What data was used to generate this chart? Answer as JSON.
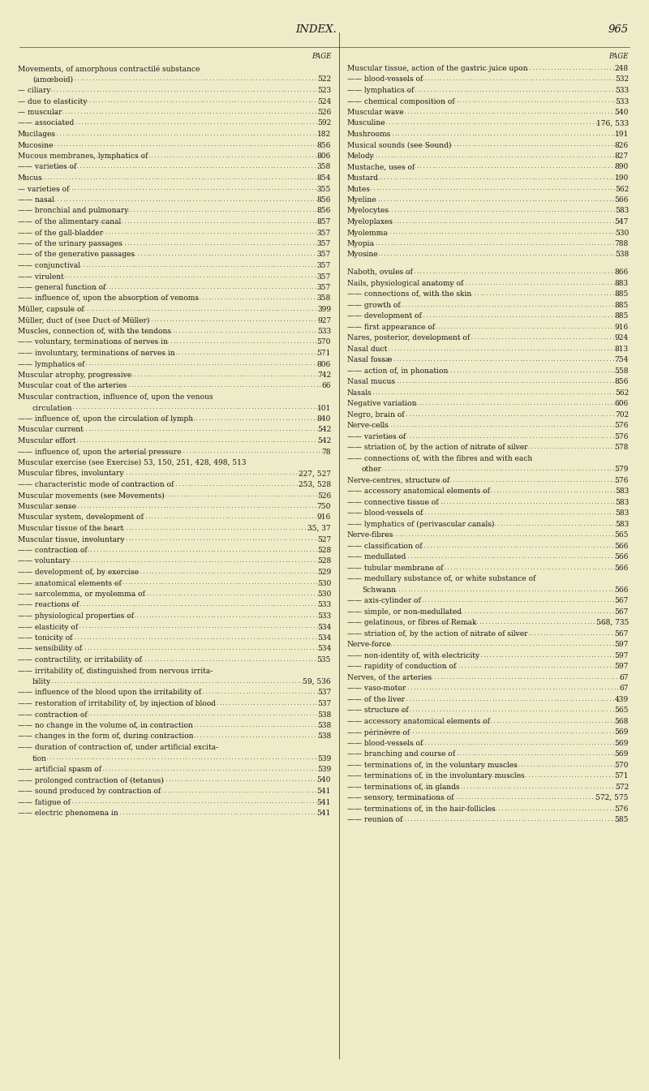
{
  "bg_color": "#edebc8",
  "text_color": "#1a1a1a",
  "title": "INDEX.",
  "page_num": "965",
  "font_size": 6.5,
  "title_font_size": 9.5,
  "left_col": [
    [
      "Movements, of amorphous contractilé substance",
      "",
      false
    ],
    [
      "    (amœboid)",
      "522",
      false
    ],
    [
      "— ciliary",
      "523",
      false
    ],
    [
      "— due to elasticity",
      "524",
      false
    ],
    [
      "— muscular",
      "526",
      false
    ],
    [
      "—— associated",
      "592",
      false
    ],
    [
      "Mucilages",
      "182",
      false
    ],
    [
      "Mucosine",
      "856",
      false
    ],
    [
      "Mucous membranes, lymphatics of",
      "806",
      false
    ],
    [
      "—— varieties of",
      "358",
      false
    ],
    [
      "Mucus",
      "854",
      false
    ],
    [
      "— varieties of",
      "355",
      false
    ],
    [
      "—— nasal",
      "856",
      false
    ],
    [
      "—— bronchial and pulmonary",
      "856",
      false
    ],
    [
      "—— of the alimentary canal",
      "857",
      false
    ],
    [
      "—— of the gall-bladder",
      "357",
      false
    ],
    [
      "—— of the urinary passages",
      "357",
      false
    ],
    [
      "—— of the generative passages",
      "357",
      false
    ],
    [
      "—— conjunctival",
      "357",
      false
    ],
    [
      "—— virulent",
      "357",
      false
    ],
    [
      "—— general function of",
      "357",
      false
    ],
    [
      "—— influence of, upon the absorption of venoms",
      "358",
      false
    ],
    [
      "Müller, capsule of",
      "399",
      false
    ],
    [
      "Müller, duct of (see Duct of Müller)",
      "927",
      false
    ],
    [
      "Muscles, connection of, with the tendons",
      "533",
      false
    ],
    [
      "—— voluntary, terminations of nerves in",
      "570",
      false
    ],
    [
      "—— involuntary, terminations of nerves in",
      "571",
      false
    ],
    [
      "—— lymphatics of",
      "806",
      false
    ],
    [
      "Muscular atrophy, progressive",
      "742",
      false
    ],
    [
      "Muscular coat of the arteries",
      "66",
      false
    ],
    [
      "Muscular contraction, influence of, upon the venous",
      "",
      false
    ],
    [
      "    circulation",
      "101",
      false
    ],
    [
      "—— influence of, upon the circulation of lymph",
      "840",
      false
    ],
    [
      "Muscular current",
      "542",
      false
    ],
    [
      "Muscular effort",
      "542",
      false
    ],
    [
      "—— influence of, upon the arterial pressure",
      "78",
      false
    ],
    [
      "Muscular exercise (see Exercise) 53, 150, 251, 428, 498, 513",
      "",
      true
    ],
    [
      "Muscular fibres, involuntary",
      "227, 527",
      false
    ],
    [
      "—— characteristic mode of contraction of",
      "253, 528",
      false
    ],
    [
      "Muscular movements (see Movements)",
      "526",
      false
    ],
    [
      "Muscular sense",
      "750",
      false
    ],
    [
      "Muscular system, development of",
      "916",
      false
    ],
    [
      "Muscular tissue of the heart",
      "35, 37",
      false
    ],
    [
      "Muscular tissue, involuntary",
      "527",
      false
    ],
    [
      "—— contraction of",
      "528",
      false
    ],
    [
      "—— voluntary",
      "528",
      false
    ],
    [
      "—— development of, by exercise",
      "529",
      false
    ],
    [
      "—— anatomical elements of",
      "530",
      false
    ],
    [
      "—— sarcolemma, or myolemma of",
      "530",
      false
    ],
    [
      "—— reactions of",
      "533",
      false
    ],
    [
      "—— physiological properties of",
      "533",
      false
    ],
    [
      "—— elasticity of",
      "534",
      false
    ],
    [
      "—— tonicity of",
      "534",
      false
    ],
    [
      "—— sensibility of",
      "534",
      false
    ],
    [
      "—— contractility, or irritability of",
      "535",
      false
    ],
    [
      "—— irritability of, distinguished from nervous irrita-",
      "",
      false
    ],
    [
      "    bility",
      "59, 536",
      false
    ],
    [
      "—— influence of the blood upon the irritability of",
      "537",
      false
    ],
    [
      "—— restoration of irritability of, by injection of blood",
      "537",
      false
    ],
    [
      "—— contraction of",
      "538",
      false
    ],
    [
      "—— no change in the volume of, in contraction",
      "538",
      false
    ],
    [
      "—— changes in the form of, during contraction",
      "538",
      false
    ],
    [
      "—— duration of contraction of, under artificial excita-",
      "",
      false
    ],
    [
      "    tion",
      "539",
      false
    ],
    [
      "—— artificial spasm of",
      "539",
      false
    ],
    [
      "—— prolonged contraction of (tetanus)",
      "540",
      false
    ],
    [
      "—— sound produced by contraction of",
      "541",
      false
    ],
    [
      "—— fatigue of",
      "541",
      false
    ],
    [
      "—— electric phenomena in",
      "541",
      false
    ]
  ],
  "right_col": [
    [
      "Muscular tissue, action of the gastric juice upon",
      "248",
      false
    ],
    [
      "—— blood-vessels of",
      "532",
      false
    ],
    [
      "—— lymphatics of",
      "533",
      false
    ],
    [
      "—— chemical composition of",
      "533",
      false
    ],
    [
      "Muscular wave",
      "540",
      false
    ],
    [
      "Musculine",
      "176, 533",
      false
    ],
    [
      "Mushrooms",
      "191",
      false
    ],
    [
      "Musical sounds (see Sound)",
      "826",
      false
    ],
    [
      "Melody",
      "827",
      false
    ],
    [
      "Mustache, uses of",
      "890",
      false
    ],
    [
      "Mustard",
      "190",
      false
    ],
    [
      "Mutes",
      "562",
      false
    ],
    [
      "Myeline",
      "566",
      false
    ],
    [
      "Myelocytes",
      "583",
      false
    ],
    [
      "Myeloplaxes",
      "547",
      false
    ],
    [
      "Myolemma",
      "530",
      false
    ],
    [
      "Myopia",
      "788",
      false
    ],
    [
      "Myosine",
      "538",
      false
    ],
    [
      "",
      "",
      false
    ],
    [
      "Naboth, ovules of",
      "866",
      false
    ],
    [
      "Nails, physiological anatomy of",
      "883",
      false
    ],
    [
      "—— connections of, with the skin",
      "885",
      false
    ],
    [
      "—— growth of",
      "885",
      false
    ],
    [
      "—— development of",
      "885",
      false
    ],
    [
      "—— first appearance of",
      "916",
      false
    ],
    [
      "Nares, posterior, development of",
      "924",
      false
    ],
    [
      "Nasal duct",
      "813",
      false
    ],
    [
      "Nasal fossæ",
      "754",
      false
    ],
    [
      "—— action of, in phonation",
      "558",
      false
    ],
    [
      "Nasal mucus",
      "856",
      false
    ],
    [
      "Nasals",
      "562",
      false
    ],
    [
      "Negative variation",
      "606",
      false
    ],
    [
      "Negro, brain of",
      "702",
      false
    ],
    [
      "Nerve-cells",
      "576",
      false
    ],
    [
      "—— varieties of",
      "576",
      false
    ],
    [
      "—— striation of, by the action of nitrate of silver",
      "578",
      false
    ],
    [
      "—— connections of, with the fibres and with each",
      "",
      false
    ],
    [
      "    other",
      "579",
      false
    ],
    [
      "Nerve-centres, structure of",
      "576",
      false
    ],
    [
      "—— accessory anatomical elements of",
      "583",
      false
    ],
    [
      "—— connective tissue of",
      "583",
      false
    ],
    [
      "—— blood-vessels of",
      "583",
      false
    ],
    [
      "—— lymphatics of (perivascular canals)",
      "583",
      false
    ],
    [
      "Nerve-fibres",
      "565",
      false
    ],
    [
      "—— classification of",
      "566",
      false
    ],
    [
      "—— medullated",
      "566",
      false
    ],
    [
      "—— tubular membrane of",
      "566",
      false
    ],
    [
      "—— medullary substance of, or white substance of",
      "",
      false
    ],
    [
      "    Schwann",
      "566",
      false
    ],
    [
      "—— axis-cylinder of",
      "567",
      false
    ],
    [
      "—— simple, or non-medullated",
      "567",
      false
    ],
    [
      "—— gelatinous, or fibres of Remak",
      "568, 735",
      false
    ],
    [
      "—— striation of, by the action of nitrate of silver",
      "567",
      false
    ],
    [
      "Nerve-force",
      "597",
      false
    ],
    [
      "—— non-identity of, with electricity",
      "597",
      false
    ],
    [
      "—— rapidity of conduction of",
      "597",
      false
    ],
    [
      "Nerves, of the arteries",
      "67",
      false
    ],
    [
      "—— vaso-motor",
      "67",
      false
    ],
    [
      "—— of the liver",
      "439",
      false
    ],
    [
      "—— structure of",
      "565",
      false
    ],
    [
      "—— accessory anatomical elements of",
      "568",
      false
    ],
    [
      "—— périnèvre of",
      "569",
      false
    ],
    [
      "—— blood-vessels of",
      "569",
      false
    ],
    [
      "—— branching and course of",
      "569",
      false
    ],
    [
      "—— terminations of, in the voluntary muscles",
      "570",
      false
    ],
    [
      "—— terminations of, in the involuntary muscles",
      "571",
      false
    ],
    [
      "—— terminations of, in glands",
      "572",
      false
    ],
    [
      "—— sensory, terminations of",
      "572, 575",
      false
    ],
    [
      "—— terminations of, in the hair-follicles",
      "576",
      false
    ],
    [
      "—— reunion of",
      "585",
      false
    ]
  ]
}
